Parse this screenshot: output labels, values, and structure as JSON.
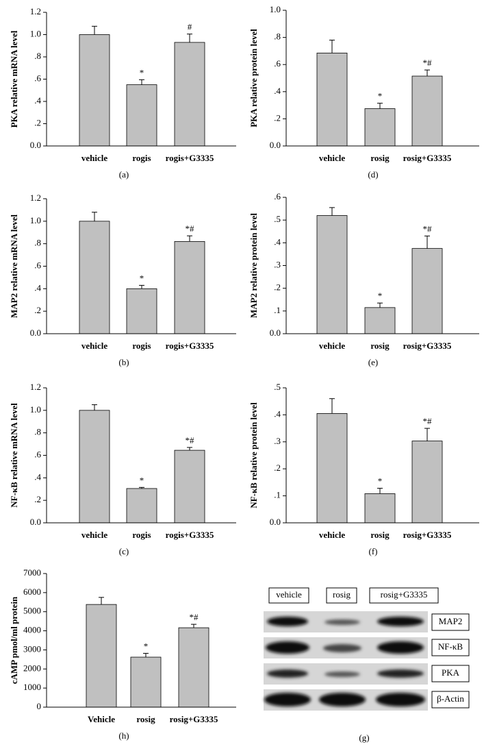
{
  "chart_data": [
    {
      "type": "bar",
      "panel_label": "(a)",
      "y_label": "PKA relative mRNA level",
      "color": "#c0c0c0",
      "categories": [
        "vehicle",
        "rogis",
        "rogis+G3335"
      ],
      "values": [
        1.0,
        0.55,
        0.93
      ],
      "errors": [
        0.075,
        0.045,
        0.075
      ],
      "annotations": [
        null,
        "*",
        "#"
      ],
      "ylim": [
        0,
        1.2
      ],
      "yticks": [
        {
          "value": 0,
          "label": "0.0"
        },
        {
          "value": 0.2,
          "label": ".2"
        },
        {
          "value": 0.4,
          "label": ".4"
        },
        {
          "value": 0.6,
          "label": ".6"
        },
        {
          "value": 0.8,
          "label": ".8"
        },
        {
          "value": 1.0,
          "label": "1.0"
        },
        1.2
      ]
    },
    {
      "type": "bar",
      "panel_label": "(b)",
      "y_label": "MAP2 relative mRNA level",
      "color": "#c0c0c0",
      "categories": [
        "vehicle",
        "rogis",
        "rogis+G3335"
      ],
      "values": [
        1.0,
        0.4,
        0.82
      ],
      "errors": [
        0.08,
        0.03,
        0.05
      ],
      "annotations": [
        null,
        "*",
        "*#"
      ],
      "ylim": [
        0,
        1.2
      ],
      "yticks": [
        {
          "value": 0,
          "label": "0.0"
        },
        {
          "value": 0.2,
          "label": ".2"
        },
        {
          "value": 0.4,
          "label": ".4"
        },
        {
          "value": 0.6,
          "label": ".6"
        },
        {
          "value": 0.8,
          "label": ".8"
        },
        {
          "value": 1.0,
          "label": "1.0"
        },
        1.2
      ]
    },
    {
      "type": "bar",
      "panel_label": "(c)",
      "y_label": "NF-κB relative mRNA level",
      "color": "#c0c0c0",
      "categories": [
        "vehicle",
        "rogis",
        "rogis+G3335"
      ],
      "values": [
        1.0,
        0.305,
        0.645
      ],
      "errors": [
        0.05,
        0.01,
        0.025
      ],
      "annotations": [
        null,
        "*",
        "*#"
      ],
      "ylim": [
        0,
        1.2
      ],
      "yticks": [
        {
          "value": 0,
          "label": "0.0"
        },
        {
          "value": 0.2,
          "label": ".2"
        },
        {
          "value": 0.4,
          "label": ".4"
        },
        {
          "value": 0.6,
          "label": ".6"
        },
        {
          "value": 0.8,
          "label": ".8"
        },
        {
          "value": 1.0,
          "label": "1.0"
        },
        1.2
      ]
    },
    {
      "type": "bar",
      "panel_label": "(d)",
      "y_label": "PKA relative protein level",
      "color": "#c0c0c0",
      "categories": [
        "vehicle",
        "rosig",
        "rosig+G3335"
      ],
      "values": [
        0.685,
        0.275,
        0.515
      ],
      "errors": [
        0.095,
        0.04,
        0.045
      ],
      "annotations": [
        null,
        "*",
        "*#"
      ],
      "ylim": [
        0,
        1.0
      ],
      "yticks": [
        {
          "value": 0,
          "label": "0.0"
        },
        {
          "value": 0.2,
          "label": ".2"
        },
        {
          "value": 0.4,
          "label": ".4"
        },
        {
          "value": 0.6,
          "label": ".6"
        },
        {
          "value": 0.8,
          "label": ".8"
        },
        {
          "value": 1.0,
          "label": "1.0"
        }
      ]
    },
    {
      "type": "bar",
      "panel_label": "(e)",
      "y_label": "MAP2 relative protein level",
      "color": "#c0c0c0",
      "categories": [
        "vehicle",
        "rosig",
        "rosig+G3335"
      ],
      "values": [
        0.52,
        0.115,
        0.375
      ],
      "errors": [
        0.035,
        0.02,
        0.055
      ],
      "annotations": [
        null,
        "*",
        "*#"
      ],
      "ylim": [
        0,
        0.6
      ],
      "yticks": [
        {
          "value": 0,
          "label": "0.0"
        },
        {
          "value": 0.1,
          "label": ".1"
        },
        {
          "value": 0.2,
          "label": ".2"
        },
        {
          "value": 0.3,
          "label": ".3"
        },
        {
          "value": 0.4,
          "label": ".4"
        },
        {
          "value": 0.5,
          "label": ".5"
        },
        {
          "value": 0.6,
          "label": ".6"
        }
      ]
    },
    {
      "type": "bar",
      "panel_label": "(f)",
      "y_label": "NF-κB relative protein level",
      "color": "#c0c0c0",
      "categories": [
        "vehicle",
        "rosig",
        "rosig+G3335"
      ],
      "values": [
        0.405,
        0.108,
        0.303
      ],
      "errors": [
        0.055,
        0.02,
        0.047
      ],
      "annotations": [
        null,
        "*",
        "*#"
      ],
      "ylim": [
        0,
        0.5
      ],
      "yticks": [
        {
          "value": 0,
          "label": "0.0"
        },
        {
          "value": 0.1,
          "label": ".1"
        },
        {
          "value": 0.2,
          "label": ".2"
        },
        {
          "value": 0.3,
          "label": ".3"
        },
        {
          "value": 0.4,
          "label": ".4"
        },
        {
          "value": 0.5,
          "label": ".5"
        }
      ]
    },
    {
      "type": "bar",
      "panel_label": "(h)",
      "y_label": "cAMP pmol/ml protein",
      "color": "#c0c0c0",
      "categories": [
        "Vehicle",
        "rosig",
        "rosig+G3335"
      ],
      "values": [
        5380,
        2620,
        4160
      ],
      "errors": [
        370,
        200,
        180
      ],
      "annotations": [
        null,
        "*",
        "*#"
      ],
      "ylim": [
        0,
        7000
      ],
      "yticks": [
        0,
        1000,
        2000,
        3000,
        4000,
        5000,
        6000,
        7000
      ]
    }
  ],
  "blot": {
    "panel_label": "(g)",
    "lanes": [
      "vehicle",
      "rosig",
      "rosig+G3335"
    ],
    "proteins": [
      "MAP2",
      "NF-κB",
      "PKA",
      "β-Actin"
    ]
  }
}
